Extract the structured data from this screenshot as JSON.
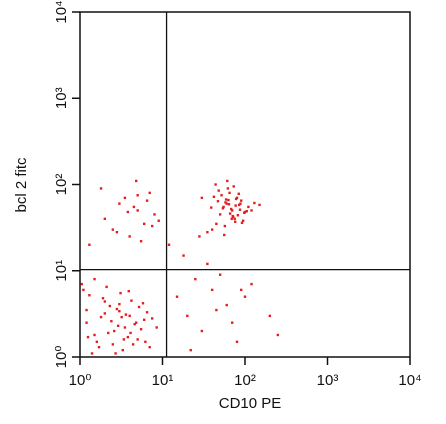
{
  "chart_data": {
    "type": "scatter",
    "x_label": "CD10 PE",
    "y_label": "bcl 2 fitc",
    "color": "#e41e1e",
    "log_x": true,
    "log_y": true,
    "xlim": [
      1,
      10000
    ],
    "ylim": [
      1,
      10000
    ],
    "xticks": [
      {
        "value": 1,
        "label": "10⁰"
      },
      {
        "value": 10,
        "label": "10¹"
      },
      {
        "value": 100,
        "label": "10²"
      },
      {
        "value": 1000,
        "label": "10³"
      },
      {
        "value": 10000,
        "label": "10⁴"
      }
    ],
    "yticks": [
      {
        "value": 1,
        "label": "10⁰"
      },
      {
        "value": 10,
        "label": "10¹"
      },
      {
        "value": 100,
        "label": "10²"
      },
      {
        "value": 1000,
        "label": "10³"
      },
      {
        "value": 10000,
        "label": "10⁴"
      }
    ],
    "quadrant": {
      "x": 11.2,
      "y": 10.3
    },
    "x": [
      1.2,
      1.5,
      2,
      2.5,
      3,
      3.5,
      4,
      5,
      6,
      7,
      1.3,
      1.8,
      2.2,
      2.8,
      3.3,
      4.2,
      5.5,
      6.5,
      1.1,
      1.6,
      2.4,
      3.1,
      3.8,
      4.6,
      5.2,
      1.4,
      1.9,
      2.6,
      3.6,
      4.4,
      1.2,
      2.1,
      2.9,
      3.4,
      5.8,
      7.5,
      1.7,
      2.3,
      3.9,
      4.8,
      1.05,
      1.25,
      2.7,
      3.2,
      4.1,
      6.2,
      1.5,
      2,
      3,
      8.5,
      50,
      60,
      70,
      80,
      45,
      55,
      65,
      75,
      90,
      100,
      40,
      85,
      62,
      72,
      58,
      68,
      95,
      52,
      78,
      110,
      35,
      48,
      66,
      88,
      120,
      42,
      57,
      73,
      82,
      63,
      54,
      69,
      77,
      92,
      47,
      61,
      105,
      39,
      84,
      71,
      130,
      30,
      56,
      64,
      98,
      44,
      76,
      87,
      59,
      150,
      2,
      3,
      4,
      5,
      6,
      7,
      8,
      2.5,
      3.5,
      4.5,
      5.5,
      6.5,
      9,
      1.8,
      2.8,
      3.8,
      4.8,
      7.5,
      1.3,
      5,
      15,
      20,
      25,
      30,
      40,
      60,
      80,
      120,
      200,
      18,
      35,
      50,
      70,
      100,
      12,
      22,
      45,
      90,
      250,
      28
    ],
    "y": [
      2.5,
      1.8,
      3.2,
      1.4,
      4.1,
      2.2,
      3,
      1.6,
      2.7,
      1.3,
      5.2,
      2.9,
      1.9,
      3.6,
      1.2,
      4.5,
      2.1,
      3.3,
      6,
      1.5,
      2.6,
      5.5,
      1.7,
      2.4,
      3.8,
      1.1,
      4.8,
      2,
      3.1,
      1.4,
      3.5,
      6.5,
      2.3,
      1.6,
      4.2,
      2.8,
      1.3,
      3.9,
      5.8,
      2.5,
      7,
      1.7,
      1.1,
      2.9,
      1.9,
      1.5,
      8,
      4.4,
      3.4,
      2.2,
      45,
      60,
      50,
      70,
      35,
      55,
      80,
      40,
      65,
      48,
      30,
      58,
      90,
      42,
      62,
      52,
      38,
      75,
      68,
      55,
      28,
      85,
      46,
      60,
      50,
      72,
      33,
      95,
      44,
      66,
      53,
      40,
      57,
      36,
      64,
      110,
      49,
      54,
      78,
      43,
      61,
      70,
      26,
      59,
      47,
      100,
      37,
      51,
      67,
      58,
      40,
      60,
      25,
      50,
      35,
      80,
      45,
      30,
      70,
      55,
      22,
      65,
      38,
      90,
      28,
      48,
      110,
      33,
      20,
      75,
      5,
      3,
      8,
      2,
      6,
      4,
      1.5,
      7,
      3,
      15,
      12,
      9,
      2.5,
      5,
      20,
      1.2,
      3.5,
      6,
      1.8,
      25
    ]
  }
}
